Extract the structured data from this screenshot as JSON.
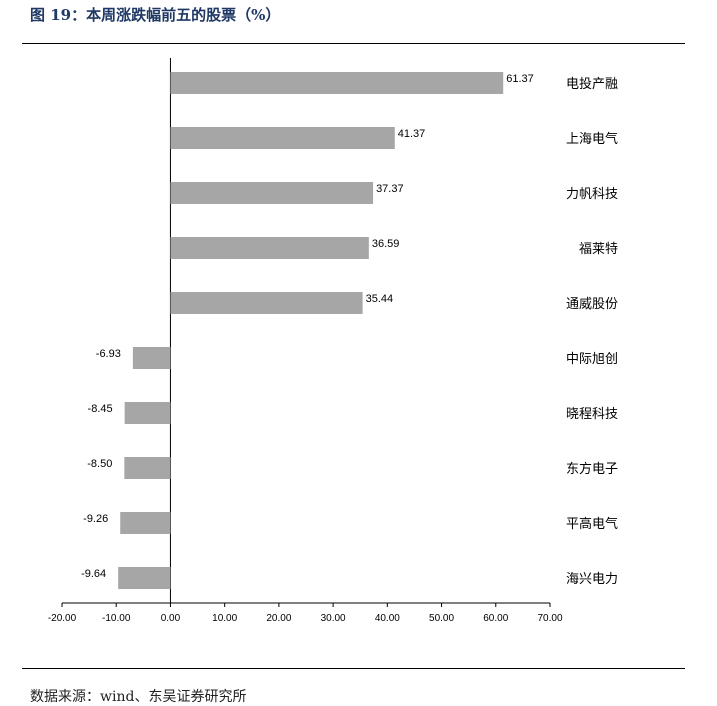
{
  "title": "图 19：本周涨跌幅前五的股票（%）",
  "source": "数据来源：wind、东吴证券研究所",
  "chart_data": {
    "type": "bar",
    "orientation": "horizontal",
    "categories": [
      "电投产融",
      "上海电气",
      "力帆科技",
      "福莱特",
      "通威股份",
      "中际旭创",
      "晓程科技",
      "东方电子",
      "平高电气",
      "海兴电力"
    ],
    "values": [
      61.37,
      41.37,
      37.37,
      36.59,
      35.44,
      -6.93,
      -8.45,
      -8.5,
      -9.26,
      -9.64
    ],
    "value_labels": [
      "61.37",
      "41.37",
      "37.37",
      "36.59",
      "35.44",
      "-6.93",
      "-8.45",
      "-8.50",
      "-9.26",
      "-9.64"
    ],
    "xlim": [
      -20,
      70
    ],
    "xticks": [
      "-20.00",
      "-10.00",
      "0.00",
      "10.00",
      "20.00",
      "30.00",
      "40.00",
      "50.00",
      "60.00",
      "70.00"
    ],
    "bar_color": "#a6a6a6",
    "grid": false,
    "legend": "none"
  }
}
